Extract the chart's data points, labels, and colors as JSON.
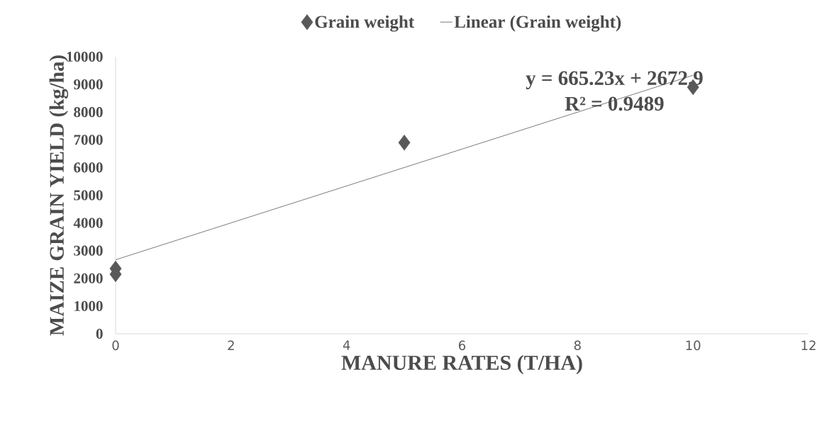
{
  "chart_data": {
    "type": "scatter",
    "xlabel": "MANURE RATES (T/HA)",
    "ylabel": "MAIZE GRAIN YIELD (kg/ha)",
    "xlim": [
      0,
      12
    ],
    "xticks": [
      0,
      2,
      4,
      6,
      8,
      10,
      12
    ],
    "ylim": [
      0,
      10000
    ],
    "yticks": [
      0,
      1000,
      2000,
      3000,
      4000,
      5000,
      6000,
      7000,
      8000,
      9000,
      10000
    ],
    "series": [
      {
        "name": "Grain weight",
        "color": "#595959",
        "marker": "diamond",
        "x": [
          0,
          0,
          5,
          10
        ],
        "values": [
          2350,
          2150,
          6900,
          8900
        ]
      },
      {
        "name": "Linear (Grain weight)",
        "type": "line",
        "color": "#595959",
        "marker": "none",
        "line_style": "solid",
        "x": [
          0,
          10
        ],
        "values": [
          2670,
          9330
        ]
      }
    ],
    "annotations": [
      "y = 665.23x + 2672.9",
      "R² = 0.9489"
    ],
    "legend": "top",
    "grid": false
  }
}
